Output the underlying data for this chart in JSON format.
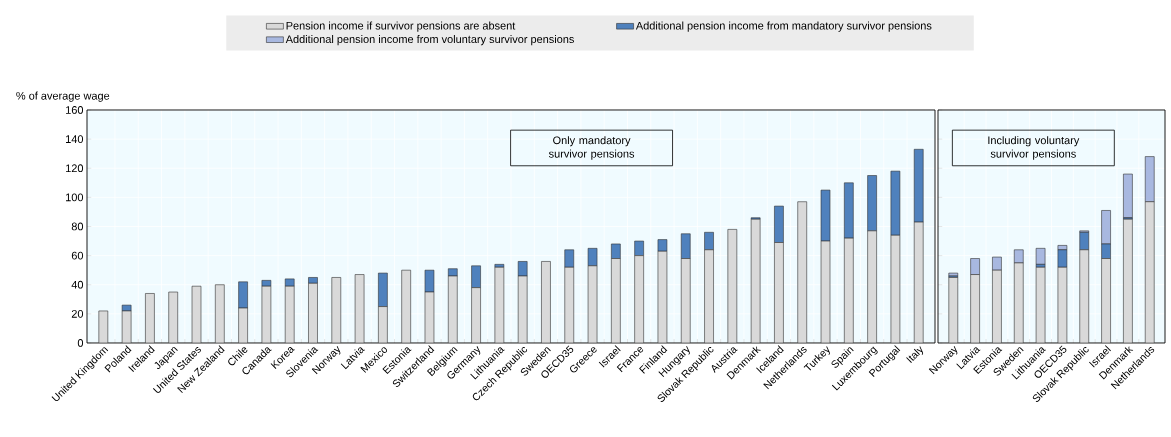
{
  "chart_data": [
    {
      "type": "bar",
      "stacked": true,
      "ylabel": "% of average wage",
      "grid": true,
      "categories": [
        "United Kingdom",
        "Poland",
        "Ireland",
        "Japan",
        "United States",
        "New Zealand",
        "Chile",
        "Canada",
        "Korea",
        "Slovenia",
        "Norway",
        "Latvia",
        "Mexico",
        "Estonia",
        "Switzerland",
        "Belgium",
        "Germany",
        "Lithuania",
        "Czech Republic",
        "Sweden",
        "OECD35",
        "Greece",
        "Israel",
        "France",
        "Finland",
        "Hungary",
        "Slovak Republic",
        "Austria",
        "Denmark",
        "Iceland",
        "Netherlands",
        "Turkey",
        "Spain",
        "Luxembourg",
        "Portugal",
        "Italy"
      ],
      "series": [
        {
          "color": "#d9d9d9",
          "values": [
            22,
            22,
            34,
            35,
            39,
            40,
            24,
            39,
            39,
            41,
            45,
            47,
            25,
            50,
            35,
            46,
            38,
            52,
            46,
            56,
            52,
            53,
            58,
            60,
            63,
            58,
            64,
            78,
            85,
            69,
            97,
            70,
            72,
            77,
            74,
            83
          ]
        },
        {
          "color": "#4f81bd",
          "values": [
            0,
            4,
            0,
            0,
            0,
            0,
            18,
            4,
            5,
            4,
            0,
            0,
            23,
            0,
            15,
            5,
            15,
            2,
            10,
            0,
            12,
            12,
            10,
            10,
            8,
            17,
            12,
            0,
            1,
            25,
            0,
            35,
            38,
            38,
            44,
            50
          ]
        }
      ],
      "ylim": [
        0,
        160
      ],
      "yticks": [
        0,
        20,
        40,
        60,
        80,
        100,
        120,
        140,
        160
      ],
      "annotations": [
        "Only mandatory survivor pensions"
      ]
    },
    {
      "type": "bar",
      "stacked": true,
      "grid": true,
      "legend": "top",
      "tick_labels": "x",
      "categories": [
        "Norway",
        "Latvia",
        "Estonia",
        "Sweden",
        "Lithuania",
        "OECD35",
        "Slovak Republic",
        "Israel",
        "Denmark",
        "Netherlands"
      ],
      "series": [
        {
          "name": "Pension income if survivor pensions are absent",
          "color": "#d9d9d9",
          "values": [
            45,
            47,
            50,
            55,
            52,
            52,
            64,
            58,
            85,
            97
          ]
        },
        {
          "name": "Additional pension income from mandatory survivor pensions",
          "color": "#4f81bd",
          "values": [
            1,
            0,
            0,
            0,
            2,
            12,
            12,
            10,
            1,
            0
          ]
        },
        {
          "name": "Additional pension income from voluntary survivor pensions",
          "color": "#a8b8e0",
          "values": [
            2,
            11,
            9,
            9,
            11,
            3,
            1,
            23,
            30,
            31
          ]
        }
      ],
      "ylim": [
        0,
        160
      ],
      "yticks": [
        0,
        20,
        40,
        60,
        80,
        100,
        120,
        140,
        160
      ],
      "annotations": [
        "Including voluntary survivor pensions"
      ]
    }
  ]
}
